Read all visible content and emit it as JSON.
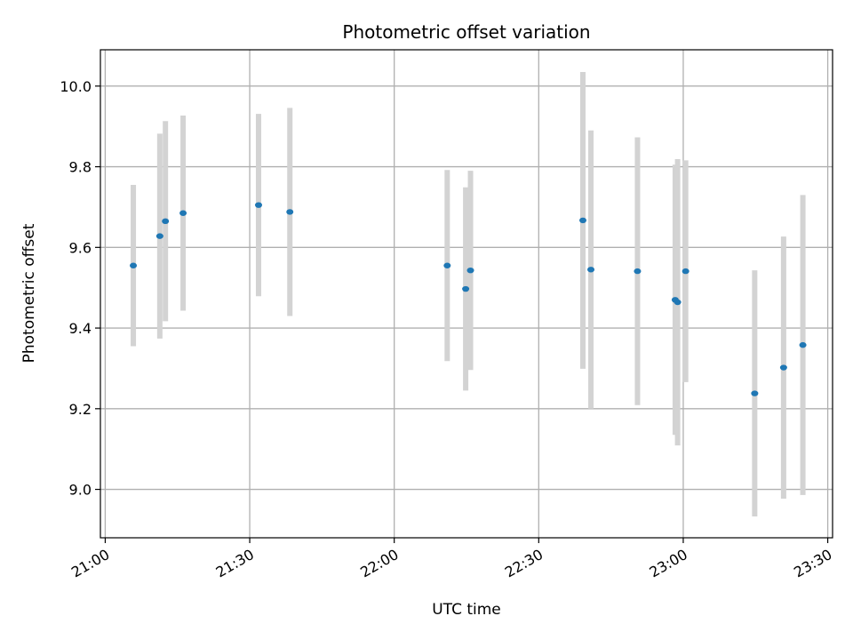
{
  "chart_data": {
    "type": "scatter",
    "title": "Photometric offset variation",
    "xlabel": "UTC time",
    "ylabel": "Photometric offset",
    "x_unit": "UTC time (HH:MM)",
    "xlim": [
      "20:59",
      "23:31"
    ],
    "ylim": [
      8.88,
      10.09
    ],
    "x_ticks": [
      "21:00",
      "21:30",
      "22:00",
      "22:30",
      "23:00",
      "23:30"
    ],
    "y_ticks": [
      9.0,
      9.2,
      9.4,
      9.6,
      9.8,
      10.0
    ],
    "y_tick_labels": [
      "9.0",
      "9.2",
      "9.4",
      "9.6",
      "9.8",
      "10.0"
    ],
    "grid": true,
    "colors": {
      "points": "#1f77b4",
      "error_bars": "#d3d3d3",
      "grid": "#b0b0b0"
    },
    "points": [
      {
        "x": "21:05:50",
        "y": 9.555,
        "yerr": 0.2
      },
      {
        "x": "21:11:20",
        "y": 9.628,
        "yerr": 0.254
      },
      {
        "x": "21:12:30",
        "y": 9.665,
        "yerr": 0.248
      },
      {
        "x": "21:16:10",
        "y": 9.685,
        "yerr": 0.242
      },
      {
        "x": "21:31:50",
        "y": 9.705,
        "yerr": 0.226
      },
      {
        "x": "21:38:20",
        "y": 9.688,
        "yerr": 0.258
      },
      {
        "x": "22:11:00",
        "y": 9.555,
        "yerr": 0.237
      },
      {
        "x": "22:14:50",
        "y": 9.497,
        "yerr": 0.252
      },
      {
        "x": "22:15:50",
        "y": 9.543,
        "yerr": 0.247
      },
      {
        "x": "22:39:10",
        "y": 9.667,
        "yerr": 0.368
      },
      {
        "x": "22:40:50",
        "y": 9.545,
        "yerr": 0.345
      },
      {
        "x": "22:50:30",
        "y": 9.541,
        "yerr": 0.332
      },
      {
        "x": "22:58:20",
        "y": 9.47,
        "yerr": 0.335
      },
      {
        "x": "22:58:50",
        "y": 9.464,
        "yerr": 0.355
      },
      {
        "x": "23:00:30",
        "y": 9.541,
        "yerr": 0.275
      },
      {
        "x": "23:14:50",
        "y": 9.238,
        "yerr": 0.305
      },
      {
        "x": "23:20:50",
        "y": 9.302,
        "yerr": 0.325
      },
      {
        "x": "23:24:50",
        "y": 9.358,
        "yerr": 0.372
      }
    ]
  }
}
